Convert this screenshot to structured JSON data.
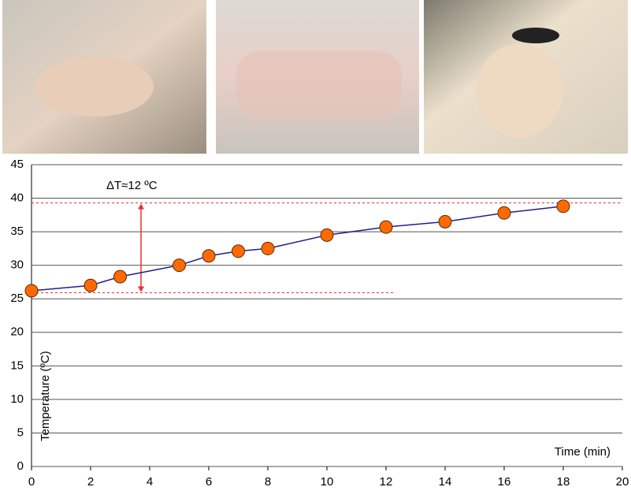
{
  "chart_data": {
    "type": "line",
    "x_label": "Time (min)",
    "y_label": "Temperature (ºC)",
    "annotation": "ΔT≈12 ºC",
    "x": [
      0,
      2,
      3,
      5,
      6,
      7,
      8,
      10,
      12,
      14,
      16,
      18
    ],
    "series": [
      {
        "name": "Temperature",
        "color": "#1f1f8f",
        "marker_color": "#ff6a00",
        "values": [
          26.2,
          27,
          28.3,
          30,
          31.4,
          32.1,
          32.5,
          34.5,
          35.7,
          36.5,
          37.8,
          38.8
        ]
      }
    ],
    "reference_lines": [
      39.3,
      25.9
    ],
    "reference_color": "#e83030",
    "xlim": [
      0,
      20
    ],
    "xticks": [
      0,
      2,
      4,
      6,
      8,
      10,
      12,
      14,
      16,
      18,
      20
    ],
    "ylim": [
      0,
      45
    ],
    "yticks": [
      0,
      5,
      10,
      15,
      20,
      25,
      30,
      35,
      40,
      45
    ],
    "grid": true
  }
}
